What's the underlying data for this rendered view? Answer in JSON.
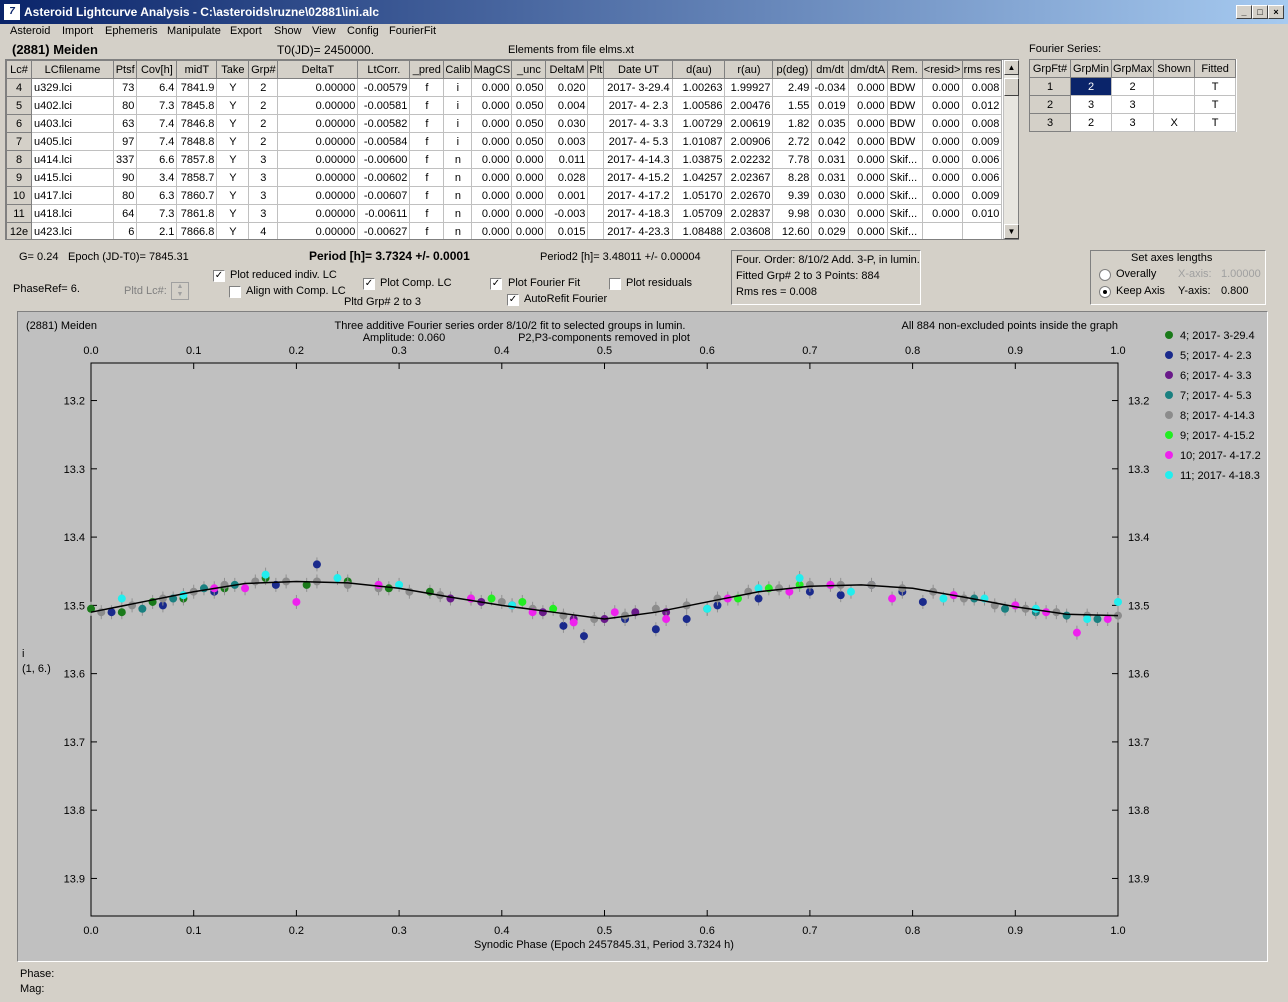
{
  "window": {
    "title": "Asteroid Lightcurve Analysis - C:\\asteroids\\ruzne\\02881\\ini.alc",
    "icon_letter": "7"
  },
  "menu": [
    "Asteroid",
    "Import",
    "Ephemeris",
    "Manipulate",
    "Export",
    "Show",
    "View",
    "Config",
    "FourierFit"
  ],
  "header": {
    "asteroid": "(2881) Meiden",
    "t0": "T0(JD)= 2450000.",
    "elements": "Elements from file elms.xt",
    "fourier_series": "Fourier Series:"
  },
  "grid": {
    "columns": [
      "Lc#",
      "LCfilename",
      "Ptsf",
      "Cov[h]",
      "midT",
      "Take",
      "Grp#",
      "DeltaT",
      "LtCorr.",
      "_pred",
      "Calib",
      "MagCS",
      "_unc",
      "DeltaM",
      "Plt",
      "Date UT",
      "d(au)",
      "r(au)",
      "p(deg)",
      "dm/dt",
      "dm/dtA",
      "Rem.",
      "<resid>",
      "rms res"
    ],
    "rows": [
      [
        "4",
        "u329.lci",
        "73",
        "6.4",
        "7841.9",
        "Y",
        "2",
        "0.00000",
        "-0.00579",
        "f",
        "i",
        "0.000",
        "0.050",
        "0.020",
        "",
        "2017- 3-29.4",
        "1.00263",
        "1.99927",
        "2.49",
        "-0.034",
        "0.000",
        "BDW",
        "0.000",
        "0.008"
      ],
      [
        "5",
        "u402.lci",
        "80",
        "7.3",
        "7845.8",
        "Y",
        "2",
        "0.00000",
        "-0.00581",
        "f",
        "i",
        "0.000",
        "0.050",
        "0.004",
        "",
        "2017- 4- 2.3",
        "1.00586",
        "2.00476",
        "1.55",
        "0.019",
        "0.000",
        "BDW",
        "0.000",
        "0.012"
      ],
      [
        "6",
        "u403.lci",
        "63",
        "7.4",
        "7846.8",
        "Y",
        "2",
        "0.00000",
        "-0.00582",
        "f",
        "i",
        "0.000",
        "0.050",
        "0.030",
        "",
        "2017- 4- 3.3",
        "1.00729",
        "2.00619",
        "1.82",
        "0.035",
        "0.000",
        "BDW",
        "0.000",
        "0.008"
      ],
      [
        "7",
        "u405.lci",
        "97",
        "7.4",
        "7848.8",
        "Y",
        "2",
        "0.00000",
        "-0.00584",
        "f",
        "i",
        "0.000",
        "0.050",
        "0.003",
        "",
        "2017- 4- 5.3",
        "1.01087",
        "2.00906",
        "2.72",
        "0.042",
        "0.000",
        "BDW",
        "0.000",
        "0.009"
      ],
      [
        "8",
        "u414.lci",
        "337",
        "6.6",
        "7857.8",
        "Y",
        "3",
        "0.00000",
        "-0.00600",
        "f",
        "n",
        "0.000",
        "0.000",
        "0.011",
        "",
        "2017- 4-14.3",
        "1.03875",
        "2.02232",
        "7.78",
        "0.031",
        "0.000",
        "Skif...",
        "0.000",
        "0.006"
      ],
      [
        "9",
        "u415.lci",
        "90",
        "3.4",
        "7858.7",
        "Y",
        "3",
        "0.00000",
        "-0.00602",
        "f",
        "n",
        "0.000",
        "0.000",
        "0.028",
        "",
        "2017- 4-15.2",
        "1.04257",
        "2.02367",
        "8.28",
        "0.031",
        "0.000",
        "Skif...",
        "0.000",
        "0.006"
      ],
      [
        "10",
        "u417.lci",
        "80",
        "6.3",
        "7860.7",
        "Y",
        "3",
        "0.00000",
        "-0.00607",
        "f",
        "n",
        "0.000",
        "0.000",
        "0.001",
        "",
        "2017- 4-17.2",
        "1.05170",
        "2.02670",
        "9.39",
        "0.030",
        "0.000",
        "Skif...",
        "0.000",
        "0.009"
      ],
      [
        "11",
        "u418.lci",
        "64",
        "7.3",
        "7861.8",
        "Y",
        "3",
        "0.00000",
        "-0.00611",
        "f",
        "n",
        "0.000",
        "0.000",
        "-0.003",
        "",
        "2017- 4-18.3",
        "1.05709",
        "2.02837",
        "9.98",
        "0.030",
        "0.000",
        "Skif...",
        "0.000",
        "0.010"
      ],
      [
        "12e",
        "u423.lci",
        "6",
        "2.1",
        "7866.8",
        "Y",
        "4",
        "0.00000",
        "-0.00627",
        "f",
        "n",
        "0.000",
        "0.000",
        "0.015",
        "",
        "2017- 4-23.3",
        "1.08488",
        "2.03608",
        "12.60",
        "0.029",
        "0.000",
        "Skif...",
        "",
        ""
      ]
    ]
  },
  "fourier": {
    "columns": [
      "GrpFt#",
      "GrpMin",
      "GrpMax",
      "Shown",
      "Fitted"
    ],
    "rows": [
      [
        "1",
        "2",
        "2",
        "",
        "T"
      ],
      [
        "2",
        "3",
        "3",
        "",
        "T"
      ],
      [
        "3",
        "2",
        "3",
        "X",
        "T"
      ]
    ]
  },
  "controls": {
    "g": "G= 0.24",
    "epoch": "Epoch (JD-T0)= 7845.31",
    "period": "Period [h]= 3.7324 +/- 0.0001",
    "period2": "Period2 [h]= 3.48011 +/- 0.00004",
    "phaseref": "PhaseRef= 6.",
    "pltd_lc": "Pltd Lc#:",
    "plot_reduced": "Plot reduced indiv. LC",
    "align": "Align with Comp. LC",
    "plot_comp": "Plot Comp. LC",
    "pltd_grp": "Pltd Grp#  2   to   3",
    "plot_fourier": "Plot Fourier Fit",
    "autorefit": "AutoRefit Fourier",
    "plot_residuals": "Plot residuals",
    "info1": "Four. Order:  8/10/2 Add. 3-P, in lumin.",
    "info2": "Fitted Grp# 2 to 3      Points: 884",
    "info3": "Rms res      = 0.008",
    "axes_title": "Set axes lengths",
    "overally": "Overally",
    "keep_axis": "Keep Axis",
    "xaxis_label": "X-axis:",
    "xaxis_val": "1.00000",
    "yaxis_label": "Y-axis:",
    "yaxis_val": "0.800"
  },
  "plot": {
    "name": "(2881) Meiden",
    "line1": "Three additive Fourier series order 8/10/2 fit to selected groups in lumin.",
    "amp": "Amplitude: 0.060",
    "comp": "P2,P3-components removed in plot",
    "points": "All 884 non-excluded points inside the graph",
    "ylabel1": "i",
    "ylabel2": "(1, 6.)",
    "xlabel": "Synodic Phase (Epoch 2457845.31, Period 3.7324 h)"
  },
  "status": {
    "phase": "Phase:",
    "mag": "Mag:"
  },
  "chart_data": {
    "type": "scatter",
    "xlabel": "Synodic Phase (Epoch 2457845.31, Period 3.7324 h)",
    "xlim": [
      0,
      1
    ],
    "ylim": [
      13.9,
      13.2
    ],
    "y_inverted": true,
    "xticks": [
      "0.0",
      "0.1",
      "0.2",
      "0.3",
      "0.4",
      "0.5",
      "0.6",
      "0.7",
      "0.8",
      "0.9",
      "1.0"
    ],
    "yticks": [
      "13.2",
      "13.3",
      "13.4",
      "13.5",
      "13.6",
      "13.7",
      "13.8",
      "13.9"
    ],
    "series": [
      {
        "name": "4; 2017- 3-29.4",
        "color": "#1a7a1a",
        "x": [
          0.0,
          0.03,
          0.06,
          0.09,
          0.13,
          0.17,
          0.21,
          0.25,
          0.29,
          0.33
        ],
        "y": [
          13.505,
          13.51,
          13.495,
          13.49,
          13.475,
          13.46,
          13.47,
          13.465,
          13.475,
          13.48
        ]
      },
      {
        "name": "5; 2017- 4- 2.3",
        "color": "#1a2a8c",
        "x": [
          0.02,
          0.07,
          0.12,
          0.18,
          0.22,
          0.46,
          0.48,
          0.52,
          0.55,
          0.58,
          0.61,
          0.65,
          0.7,
          0.73,
          0.76,
          0.79,
          0.81
        ],
        "y": [
          13.51,
          13.5,
          13.48,
          13.47,
          13.44,
          13.53,
          13.545,
          13.52,
          13.535,
          13.52,
          13.5,
          13.49,
          13.48,
          13.485,
          13.47,
          13.48,
          13.495
        ]
      },
      {
        "name": "6; 2017- 4- 3.3",
        "color": "#6a1a8a",
        "x": [
          0.35,
          0.38,
          0.41,
          0.44,
          0.47,
          0.5,
          0.53,
          0.56
        ],
        "y": [
          13.49,
          13.495,
          13.5,
          13.51,
          13.52,
          13.52,
          13.51,
          13.51
        ]
      },
      {
        "name": "7; 2017- 4- 5.3",
        "color": "#1a8080",
        "x": [
          0.05,
          0.08,
          0.11,
          0.14,
          0.86,
          0.89,
          0.92,
          0.95,
          0.98
        ],
        "y": [
          13.505,
          13.49,
          13.475,
          13.47,
          13.49,
          13.505,
          13.51,
          13.515,
          13.52
        ]
      },
      {
        "name": "8; 2017- 4-14.3",
        "color": "#8c8c8c",
        "x": [
          0.01,
          0.04,
          0.07,
          0.1,
          0.13,
          0.16,
          0.19,
          0.22,
          0.25,
          0.28,
          0.31,
          0.34,
          0.37,
          0.4,
          0.43,
          0.46,
          0.49,
          0.52,
          0.55,
          0.58,
          0.61,
          0.64,
          0.67,
          0.7,
          0.73,
          0.76,
          0.79,
          0.82,
          0.85,
          0.88,
          0.91,
          0.94,
          0.97,
          1.0
        ],
        "y": [
          13.51,
          13.5,
          13.49,
          13.48,
          13.47,
          13.465,
          13.465,
          13.465,
          13.47,
          13.475,
          13.48,
          13.485,
          13.49,
          13.495,
          13.505,
          13.515,
          13.52,
          13.515,
          13.505,
          13.5,
          13.49,
          13.48,
          13.475,
          13.47,
          13.47,
          13.47,
          13.475,
          13.48,
          13.49,
          13.5,
          13.505,
          13.51,
          13.515,
          13.515
        ]
      },
      {
        "name": "9; 2017- 4-15.2",
        "color": "#22ee22",
        "x": [
          0.39,
          0.42,
          0.45,
          0.6,
          0.63,
          0.66,
          0.69
        ],
        "y": [
          13.49,
          13.495,
          13.505,
          13.505,
          13.49,
          13.475,
          13.47
        ]
      },
      {
        "name": "10; 2017- 4-17.2",
        "color": "#ee22ee",
        "x": [
          0.12,
          0.15,
          0.2,
          0.28,
          0.37,
          0.43,
          0.47,
          0.51,
          0.56,
          0.62,
          0.68,
          0.72,
          0.78,
          0.84,
          0.9,
          0.93,
          0.96,
          0.99
        ],
        "y": [
          13.475,
          13.475,
          13.495,
          13.47,
          13.49,
          13.51,
          13.525,
          13.51,
          13.52,
          13.49,
          13.48,
          13.47,
          13.49,
          13.485,
          13.5,
          13.51,
          13.54,
          13.52
        ]
      },
      {
        "name": "11; 2017- 4-18.3",
        "color": "#22eeee",
        "x": [
          0.03,
          0.09,
          0.17,
          0.24,
          0.3,
          0.41,
          0.6,
          0.65,
          0.69,
          0.74,
          0.83,
          0.87,
          0.92,
          0.97,
          1.0
        ],
        "y": [
          13.49,
          13.485,
          13.455,
          13.46,
          13.47,
          13.5,
          13.505,
          13.475,
          13.46,
          13.48,
          13.49,
          13.49,
          13.505,
          13.52,
          13.495
        ]
      }
    ],
    "fit_curve": {
      "name": "Fourier fit",
      "color": "#000000",
      "x": [
        0,
        0.05,
        0.1,
        0.15,
        0.2,
        0.25,
        0.3,
        0.35,
        0.4,
        0.45,
        0.5,
        0.55,
        0.6,
        0.65,
        0.7,
        0.75,
        0.8,
        0.85,
        0.9,
        0.95,
        1.0
      ],
      "y": [
        13.51,
        13.495,
        13.48,
        13.468,
        13.465,
        13.467,
        13.475,
        13.488,
        13.5,
        13.51,
        13.52,
        13.51,
        13.495,
        13.48,
        13.472,
        13.47,
        13.475,
        13.488,
        13.502,
        13.513,
        13.515
      ]
    }
  }
}
